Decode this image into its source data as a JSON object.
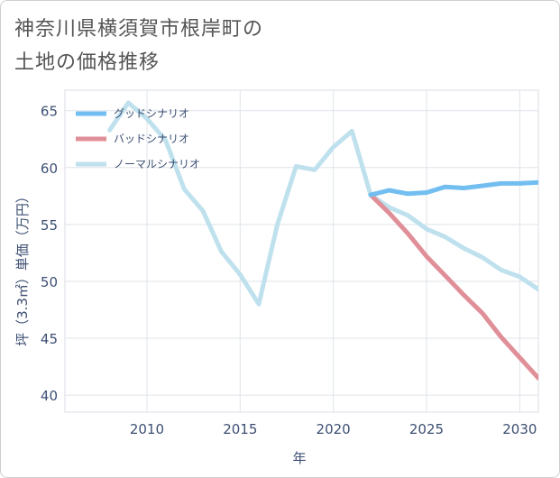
{
  "title_line1": "神奈川県横須賀市根岸町の",
  "title_line2": "土地の価格推移",
  "chart_data": {
    "type": "line",
    "title": "神奈川県横須賀市根岸町の土地の価格推移",
    "xlabel": "年",
    "ylabel": "坪（3.3㎡）単価（万円）",
    "xlim": [
      2005.6,
      2031
    ],
    "ylim": [
      38.5,
      66.8
    ],
    "xticks": [
      2010,
      2015,
      2020,
      2025,
      2030
    ],
    "yticks": [
      40,
      45,
      50,
      55,
      60,
      65
    ],
    "grid": true,
    "legend_position": "top-left",
    "series": [
      {
        "name": "グッドシナリオ",
        "color": "#72bef0",
        "x": [
          2022,
          2023,
          2024,
          2025,
          2026,
          2027,
          2028,
          2029,
          2030,
          2031
        ],
        "values": [
          57.6,
          58.0,
          57.7,
          57.8,
          58.3,
          58.2,
          58.4,
          58.6,
          58.6,
          58.7
        ]
      },
      {
        "name": "バッドシナリオ",
        "color": "#e08f98",
        "x": [
          2022,
          2023,
          2024,
          2025,
          2026,
          2027,
          2028,
          2029,
          2030,
          2031
        ],
        "values": [
          57.6,
          56.0,
          54.2,
          52.2,
          50.5,
          48.8,
          47.2,
          45.1,
          43.3,
          41.5
        ]
      },
      {
        "name": "ノーマルシナリオ",
        "color": "#bfe1ee",
        "x": [
          2008,
          2009,
          2010,
          2011,
          2012,
          2013,
          2014,
          2015,
          2016,
          2017,
          2018,
          2019,
          2020,
          2021,
          2022,
          2023,
          2024,
          2025,
          2026,
          2027,
          2028,
          2029,
          2030,
          2031
        ],
        "values": [
          63.3,
          65.7,
          64.3,
          62.4,
          58.1,
          56.2,
          52.6,
          50.6,
          48.0,
          55.0,
          60.1,
          59.8,
          61.8,
          63.2,
          57.6,
          56.5,
          55.8,
          54.6,
          53.9,
          52.9,
          52.1,
          51.0,
          50.4,
          49.3
        ]
      }
    ]
  }
}
